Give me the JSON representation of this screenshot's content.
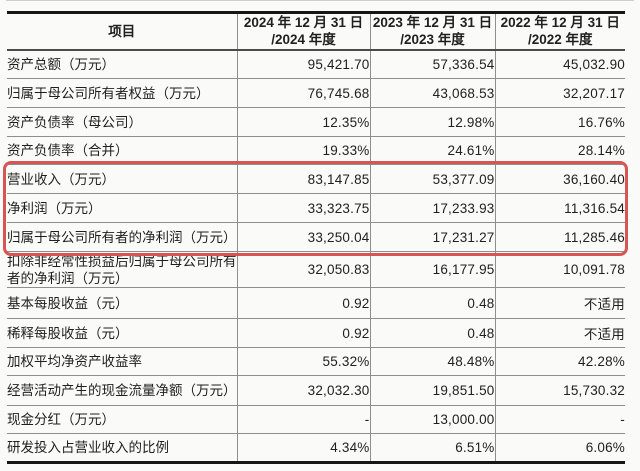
{
  "page": {
    "background": "#fafaf8"
  },
  "table": {
    "columns": [
      {
        "label": "项目"
      },
      {
        "line1": "2024 年 12 月 31 日",
        "line2": "/2024 年度"
      },
      {
        "line1": "2023 年 12 月 31 日",
        "line2": "/2023 年度"
      },
      {
        "line1": "2022 年 12 月 31 日",
        "line2": "/2022 年度"
      }
    ],
    "rows": [
      {
        "label": "资产总额（万元）",
        "v2024": "95,421.70",
        "v2023": "57,336.54",
        "v2022": "45,032.90"
      },
      {
        "label": "归属于母公司所有者权益（万元）",
        "v2024": "76,745.68",
        "v2023": "43,068.53",
        "v2022": "32,207.17"
      },
      {
        "label": "资产负债率（母公司）",
        "v2024": "12.35%",
        "v2023": "12.98%",
        "v2022": "16.76%"
      },
      {
        "label": "资产负债率（合并）",
        "v2024": "19.33%",
        "v2023": "24.61%",
        "v2022": "28.14%"
      },
      {
        "label": "营业收入（万元）",
        "v2024": "83,147.85",
        "v2023": "53,377.09",
        "v2022": "36,160.40"
      },
      {
        "label": "净利润（万元）",
        "v2024": "33,323.75",
        "v2023": "17,233.93",
        "v2022": "11,316.54"
      },
      {
        "label": "归属于母公司所有者的净利润（万元）",
        "v2024": "33,250.04",
        "v2023": "17,231.27",
        "v2022": "11,285.46"
      },
      {
        "label": "扣除非经常性损益后归属于母公司所有者的净利润（万元）",
        "v2024": "32,050.83",
        "v2023": "16,177.95",
        "v2022": "10,091.78"
      },
      {
        "label": "基本每股收益（元）",
        "v2024": "0.92",
        "v2023": "0.48",
        "v2022": "不适用"
      },
      {
        "label": "稀释每股收益（元）",
        "v2024": "0.92",
        "v2023": "0.48",
        "v2022": "不适用"
      },
      {
        "label": "加权平均净资产收益率",
        "v2024": "55.32%",
        "v2023": "48.48%",
        "v2022": "42.28%"
      },
      {
        "label": "经营活动产生的现金流量净额（万元）",
        "v2024": "32,032.30",
        "v2023": "19,851.50",
        "v2022": "15,730.32"
      },
      {
        "label": "现金分红（万元）",
        "v2024": "-",
        "v2023": "13,000.00",
        "v2022": "-"
      },
      {
        "label": "研发投入占营业收入的比例",
        "v2024": "4.34%",
        "v2023": "6.51%",
        "v2022": "6.06%"
      }
    ]
  },
  "highlight": {
    "color": "#d75552",
    "first_row_index": 4,
    "last_row_index": 6
  }
}
